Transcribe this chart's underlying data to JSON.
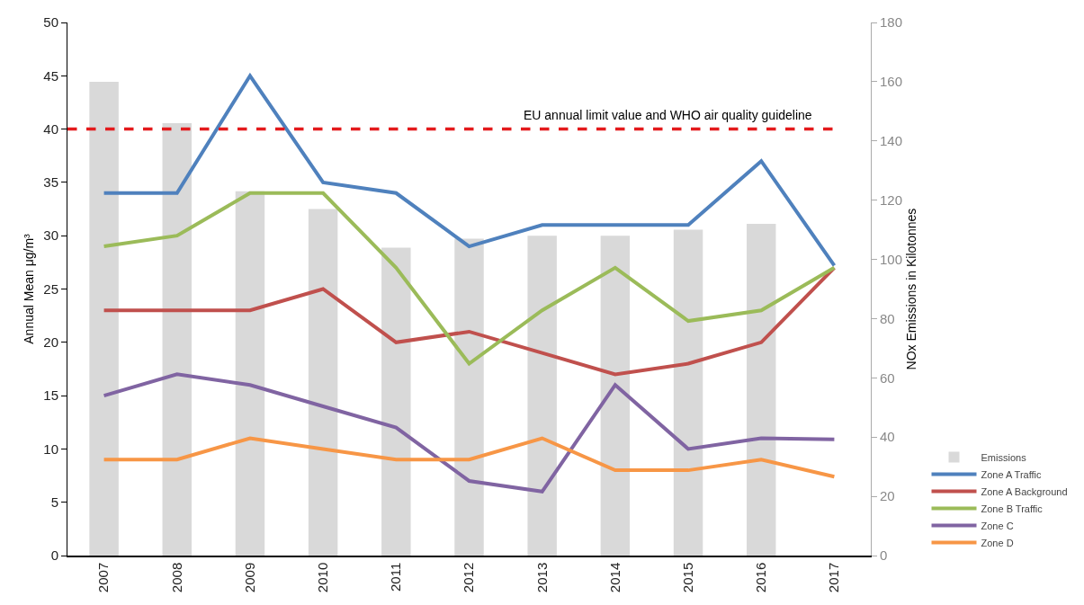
{
  "chart_data": {
    "type": "line",
    "categories": [
      "2007",
      "2008",
      "2009",
      "2010",
      "2011",
      "2012",
      "2013",
      "2014",
      "2015",
      "2016",
      "2017"
    ],
    "ylabel": "Annual Mean μg/m³",
    "y2label": "NOx Emissions in Kilotonnes",
    "ylim": [
      0,
      50
    ],
    "yticks": [
      0,
      5,
      10,
      15,
      20,
      25,
      30,
      35,
      40,
      45,
      50
    ],
    "y2lim": [
      0,
      180
    ],
    "y2ticks": [
      0,
      20,
      40,
      60,
      80,
      100,
      120,
      140,
      160,
      180
    ],
    "grid": false,
    "legend": "bottom right",
    "marker": "none",
    "line_style": "solid",
    "ref_lines": [
      {
        "axis": "y",
        "value": 40,
        "label": "EU annual limit value and WHO air quality guideline",
        "color": "#e31a1c",
        "line_style": "dashed"
      }
    ],
    "series": [
      {
        "name": "Emissions",
        "type": "bar",
        "axis": "y2",
        "color": "#d9d9d9",
        "values": [
          160,
          146,
          123,
          117,
          104,
          107,
          108,
          108,
          110,
          112,
          null
        ]
      },
      {
        "name": "Zone A Traffic",
        "color": "#4f81bd",
        "values": [
          34,
          34,
          45,
          35,
          34,
          29,
          31,
          31,
          31,
          37,
          27.2
        ]
      },
      {
        "name": "Zone A Background",
        "color": "#c0504d",
        "values": [
          23,
          23,
          23,
          25,
          20,
          21,
          19,
          17,
          18,
          20,
          27
        ]
      },
      {
        "name": "Zone B Traffic",
        "color": "#9bbb59",
        "values": [
          29,
          30,
          34,
          34,
          27,
          18,
          23,
          27,
          22,
          23,
          27
        ]
      },
      {
        "name": "Zone C",
        "color": "#8064a2",
        "values": [
          15,
          17,
          16,
          14,
          12,
          7,
          6,
          16,
          10,
          11,
          10.9
        ]
      },
      {
        "name": "Zone D",
        "color": "#f79646",
        "values": [
          9,
          9,
          11,
          10,
          9,
          9,
          11,
          8,
          8,
          9,
          7.4
        ]
      }
    ]
  }
}
